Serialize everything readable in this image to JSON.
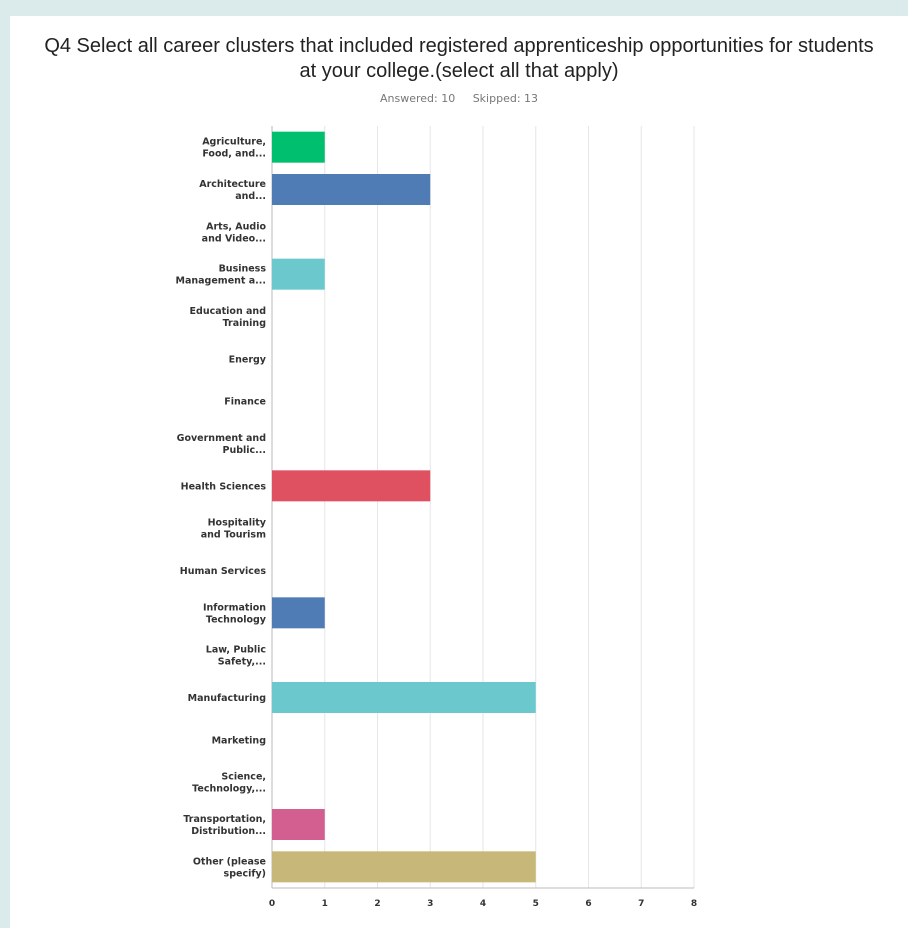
{
  "title_line1": "Q4 Select all career clusters that included registered apprenticeship opportunities for students",
  "title_line2": "at your college.(select all that apply)",
  "answered": "Answered: 10",
  "skipped": "Skipped: 13",
  "chart_data": {
    "type": "bar",
    "orientation": "horizontal",
    "title": "Q4 Select all career clusters that included registered apprenticeship opportunities for students at your college.(select all that apply)",
    "categories": [
      [
        "Agriculture,",
        "Food, and..."
      ],
      [
        "Architecture",
        "and..."
      ],
      [
        "Arts, Audio",
        "and Video..."
      ],
      [
        "Business",
        "Management a..."
      ],
      [
        "Education and",
        "Training"
      ],
      [
        "Energy"
      ],
      [
        "Finance"
      ],
      [
        "Government and",
        "Public..."
      ],
      [
        "Health Sciences"
      ],
      [
        "Hospitality",
        "and Tourism"
      ],
      [
        "Human Services"
      ],
      [
        "Information",
        "Technology"
      ],
      [
        "Law, Public",
        "Safety,..."
      ],
      [
        "Manufacturing"
      ],
      [
        "Marketing"
      ],
      [
        "Science,",
        "Technology,..."
      ],
      [
        "Transportation,",
        "Distribution..."
      ],
      [
        "Other (please",
        "specify)"
      ]
    ],
    "values": [
      1,
      3,
      0,
      1,
      0,
      0,
      0,
      0,
      3,
      0,
      0,
      1,
      0,
      5,
      0,
      0,
      1,
      5
    ],
    "colors": [
      "#00bf6f",
      "#507cb6",
      "#6bc8cd",
      "#6bc8cd",
      "#f9be00",
      "#8fbcbb",
      "#8fbcbb",
      "#8fbcbb",
      "#df5060",
      "#8fbcbb",
      "#8fbcbb",
      "#507cb6",
      "#8fbcbb",
      "#6bc8cd",
      "#8fbcbb",
      "#8fbcbb",
      "#d25f90",
      "#c7b879"
    ],
    "xlim": [
      0,
      8
    ],
    "xticks": [
      0,
      1,
      2,
      3,
      4,
      5,
      6,
      7,
      8
    ],
    "grid": true,
    "legend": "none"
  }
}
